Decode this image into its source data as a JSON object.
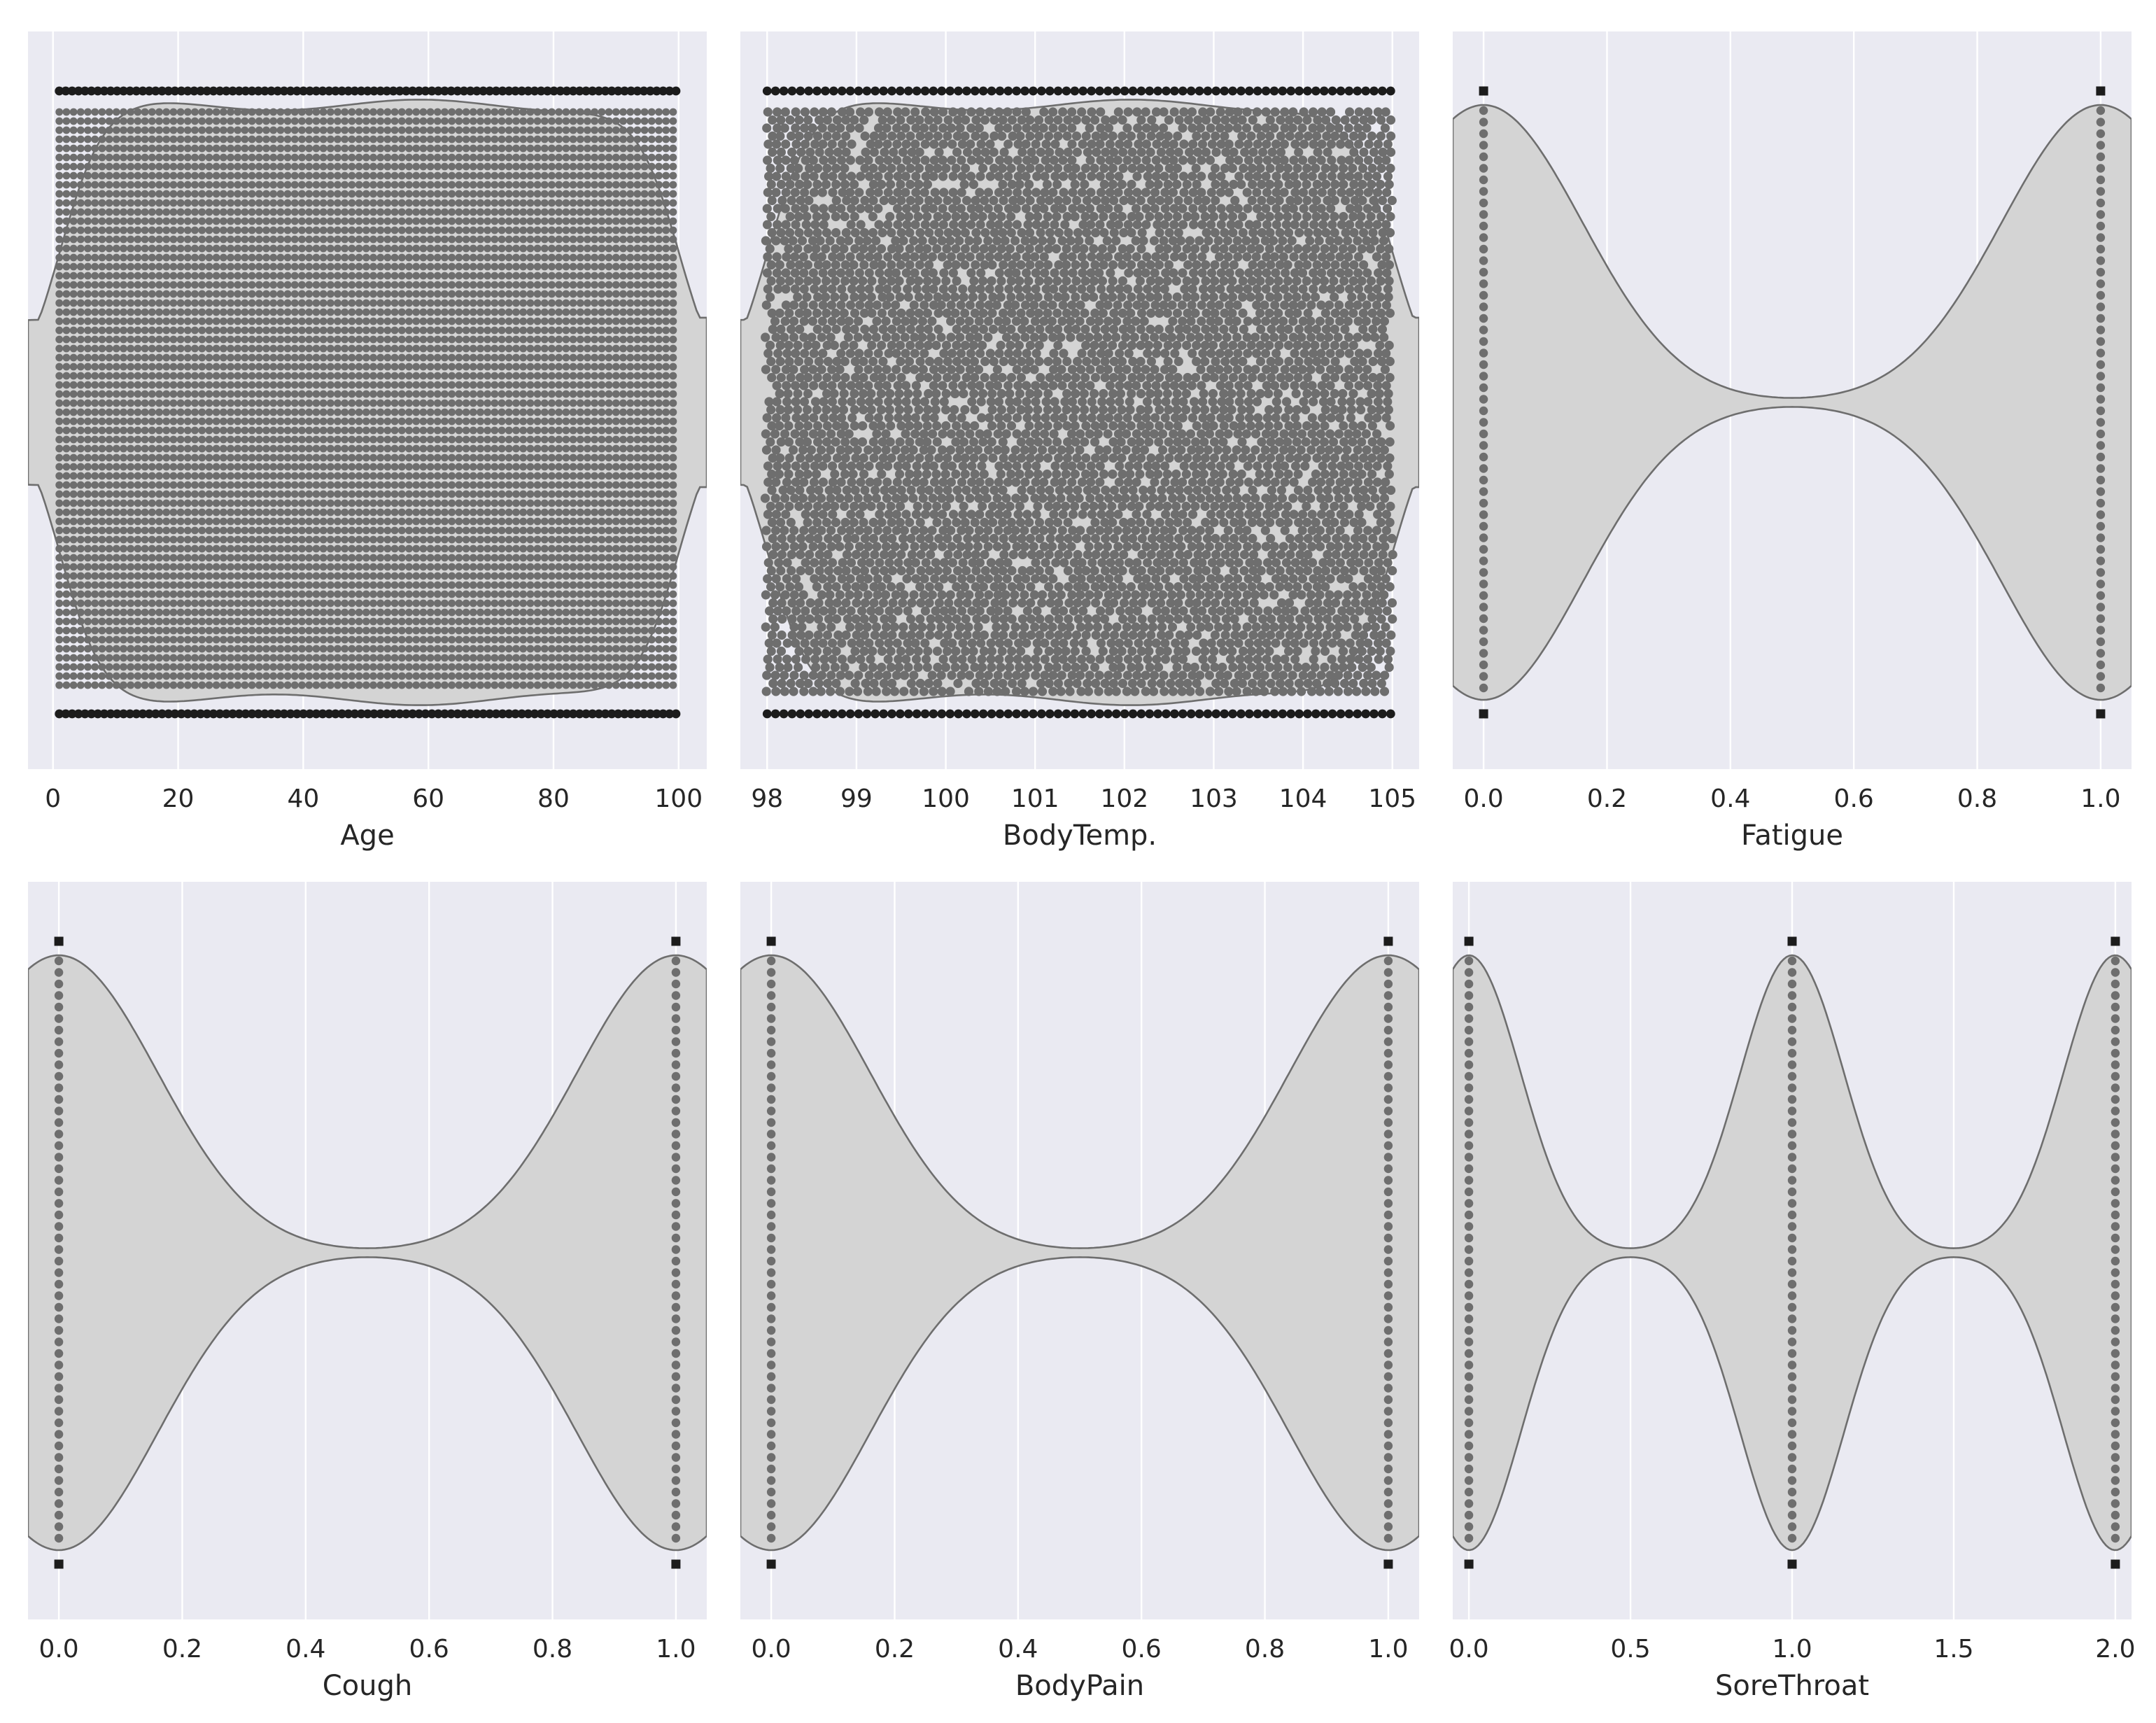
{
  "colors": {
    "axes_background": "#eaeaf2",
    "grid": "#ffffff",
    "violin_fill": "#d4d4d4",
    "violin_edge": "#6e6e6e",
    "swarm_points": "#6e6e6e",
    "extreme_points": "#1c1c1c"
  },
  "chart_data": [
    {
      "type": "violin-swarm",
      "xlabel": "Age",
      "xlim": [
        -4,
        104.5
      ],
      "xticks": [
        0,
        20,
        40,
        60,
        80,
        100
      ],
      "tick_labels": [
        "0",
        "20",
        "40",
        "60",
        "80",
        "100"
      ],
      "data_range": [
        1,
        100
      ],
      "distribution": "continuous-uniform",
      "point_grid": "vertical-columns",
      "grid": true
    },
    {
      "type": "violin-swarm",
      "xlabel": "BodyTemp.",
      "xlim": [
        97.7,
        105.3
      ],
      "xticks": [
        98,
        99,
        100,
        101,
        102,
        103,
        104,
        105
      ],
      "tick_labels": [
        "98",
        "99",
        "100",
        "101",
        "102",
        "103",
        "104",
        "105"
      ],
      "data_range": [
        98,
        105
      ],
      "distribution": "continuous-uniform",
      "point_grid": "hex-packed",
      "grid": true
    },
    {
      "type": "violin-swarm",
      "xlabel": "Fatigue",
      "xlim": [
        -0.05,
        1.05
      ],
      "xticks": [
        0.0,
        0.2,
        0.4,
        0.6,
        0.8,
        1.0
      ],
      "tick_labels": [
        "0.0",
        "0.2",
        "0.4",
        "0.6",
        "0.8",
        "1.0"
      ],
      "categories": [
        0,
        1
      ],
      "distribution": "discrete",
      "grid": true
    },
    {
      "type": "violin-swarm",
      "xlabel": "Cough",
      "xlim": [
        -0.05,
        1.05
      ],
      "xticks": [
        0.0,
        0.2,
        0.4,
        0.6,
        0.8,
        1.0
      ],
      "tick_labels": [
        "0.0",
        "0.2",
        "0.4",
        "0.6",
        "0.8",
        "1.0"
      ],
      "categories": [
        0,
        1
      ],
      "distribution": "discrete",
      "grid": true
    },
    {
      "type": "violin-swarm",
      "xlabel": "BodyPain",
      "xlim": [
        -0.05,
        1.05
      ],
      "xticks": [
        0.0,
        0.2,
        0.4,
        0.6,
        0.8,
        1.0
      ],
      "tick_labels": [
        "0.0",
        "0.2",
        "0.4",
        "0.6",
        "0.8",
        "1.0"
      ],
      "categories": [
        0,
        1
      ],
      "distribution": "discrete",
      "grid": true
    },
    {
      "type": "violin-swarm",
      "xlabel": "SoreThroat",
      "xlim": [
        -0.05,
        2.05
      ],
      "xticks": [
        0.0,
        0.5,
        1.0,
        1.5,
        2.0
      ],
      "tick_labels": [
        "0.0",
        "0.5",
        "1.0",
        "1.5",
        "2.0"
      ],
      "categories": [
        0,
        1,
        2
      ],
      "distribution": "discrete",
      "grid": true
    }
  ]
}
